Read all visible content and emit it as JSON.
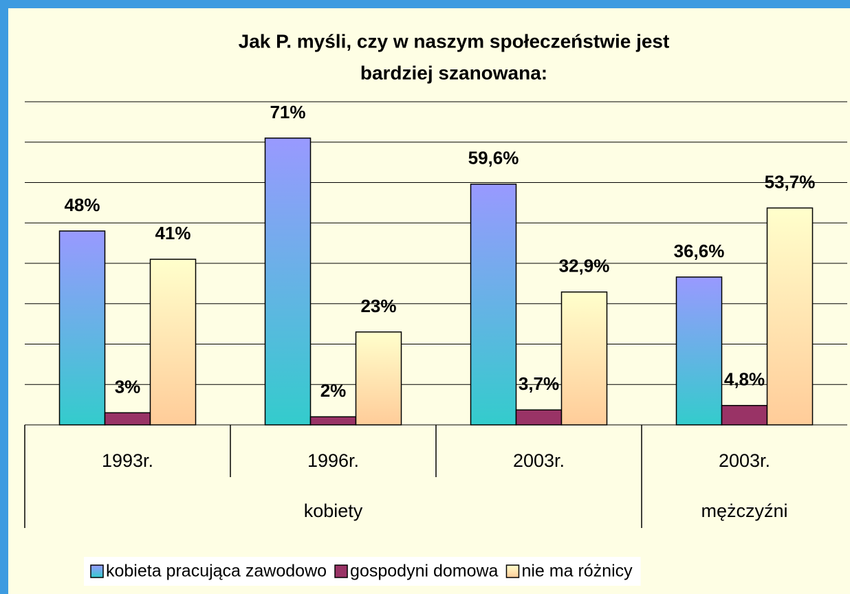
{
  "chart_data": {
    "type": "bar",
    "title": [
      "Jak P. myśli, czy w naszym społeczeństwie jest",
      "bardziej szanowana:"
    ],
    "categories": [
      "1993r.",
      "1996r.",
      "2003r.",
      "2003r."
    ],
    "category_groups": [
      {
        "label": "kobiety",
        "span": 3
      },
      {
        "label": "mężczyźni",
        "span": 1
      }
    ],
    "series": [
      {
        "name": "kobieta pracująca zawodowo",
        "color": "#9999ff",
        "gradient": [
          "#9999ff",
          "#33cccc"
        ],
        "values": [
          48,
          71,
          59.6,
          36.6
        ],
        "value_labels": [
          "48%",
          "71%",
          "59,6%",
          "36,6%"
        ]
      },
      {
        "name": "gospodyni domowa",
        "color": "#993366",
        "values": [
          3,
          2,
          3.7,
          4.8
        ],
        "value_labels": [
          "3%",
          "2%",
          "3,7%",
          "4,8%"
        ]
      },
      {
        "name": "nie ma różnicy",
        "color": "#ffcc99",
        "gradient": [
          "#ffffcc",
          "#ffcc99"
        ],
        "values": [
          41,
          23,
          32.9,
          53.7
        ],
        "value_labels": [
          "41%",
          "23%",
          "32,9%",
          "53,7%"
        ]
      }
    ],
    "ylim": [
      0,
      80
    ],
    "yticks": [
      0,
      10,
      20,
      30,
      40,
      50,
      60,
      70,
      80
    ],
    "grid": true,
    "legend": "bottom"
  }
}
